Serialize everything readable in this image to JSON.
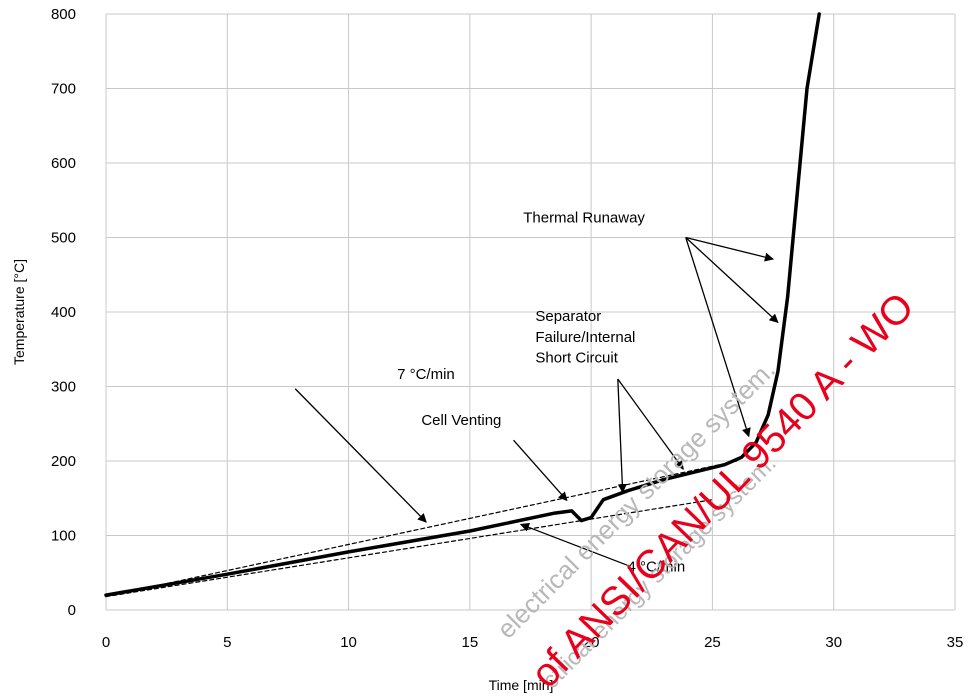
{
  "chart_data": {
    "type": "line",
    "title": "",
    "xlabel": "Time [min]",
    "ylabel": "Temperature [°C]",
    "xlim": [
      0,
      35
    ],
    "ylim": [
      0,
      800
    ],
    "xticks": [
      0,
      5,
      10,
      15,
      20,
      25,
      30,
      35
    ],
    "yticks": [
      0,
      100,
      200,
      300,
      400,
      500,
      600,
      700,
      800
    ],
    "grid": true,
    "legend": "none",
    "series": [
      {
        "style": "solid-thick",
        "x": [
          0,
          5,
          10,
          15,
          18.5,
          19.2,
          19.6,
          20,
          20.5,
          21.5,
          23,
          25.5,
          26.2,
          26.8,
          27.3,
          27.7,
          28.1,
          28.5,
          28.9,
          29.4
        ],
        "y": [
          20,
          48,
          78,
          106,
          130,
          133,
          120,
          124,
          148,
          160,
          175,
          195,
          205,
          225,
          262,
          320,
          420,
          560,
          700,
          800
        ]
      },
      {
        "style": "dashed",
        "x": [
          0,
          26
        ],
        "y": [
          18,
          200
        ]
      },
      {
        "style": "dashed",
        "x": [
          0,
          25
        ],
        "y": [
          18,
          148
        ]
      }
    ],
    "annotations": [
      {
        "text": "7 °C/min",
        "x": 12,
        "y": 310,
        "arrows": [
          {
            "from": [
              7.8,
              297
            ],
            "to": [
              13.2,
              118
            ]
          }
        ]
      },
      {
        "text": "Cell Venting",
        "x": 13,
        "y": 248,
        "arrows": [
          {
            "from": [
              16.8,
              228
            ],
            "to": [
              19.0,
              147
            ]
          }
        ]
      },
      {
        "text": "Separator",
        "x": 17.7,
        "y": 388,
        "arrows": []
      },
      {
        "text": "Failure/Internal",
        "x": 17.7,
        "y": 360,
        "arrows": []
      },
      {
        "text": "Short Circuit",
        "x": 17.7,
        "y": 332,
        "arrows": [
          {
            "from": [
              21.1,
              310
            ],
            "to": [
              21.3,
              158
            ]
          },
          {
            "from": [
              21.1,
              310
            ],
            "to": [
              23.8,
              189
            ]
          }
        ]
      },
      {
        "text": "Thermal Runaway",
        "x": 17.2,
        "y": 520,
        "arrows": [
          {
            "from": [
              23.9,
              500
            ],
            "to": [
              27.5,
              471
            ]
          },
          {
            "from": [
              23.9,
              500
            ],
            "to": [
              27.7,
              386
            ]
          },
          {
            "from": [
              23.9,
              500
            ],
            "to": [
              26.5,
              233
            ]
          }
        ]
      },
      {
        "text": "4 °C/min",
        "x": 21.5,
        "y": 52,
        "arrows": [
          {
            "from": [
              21.5,
              60
            ],
            "to": [
              17.1,
              115
            ]
          }
        ]
      }
    ]
  },
  "watermark": {
    "gray_text": "electrical energy storage system.",
    "gray_text_2": "ctrical energy storage system.",
    "red_text": "of ANSI/CAN/UL 9540 A - WO",
    "red_color": "#e8001c",
    "gray_color": "#b8b8b8"
  }
}
